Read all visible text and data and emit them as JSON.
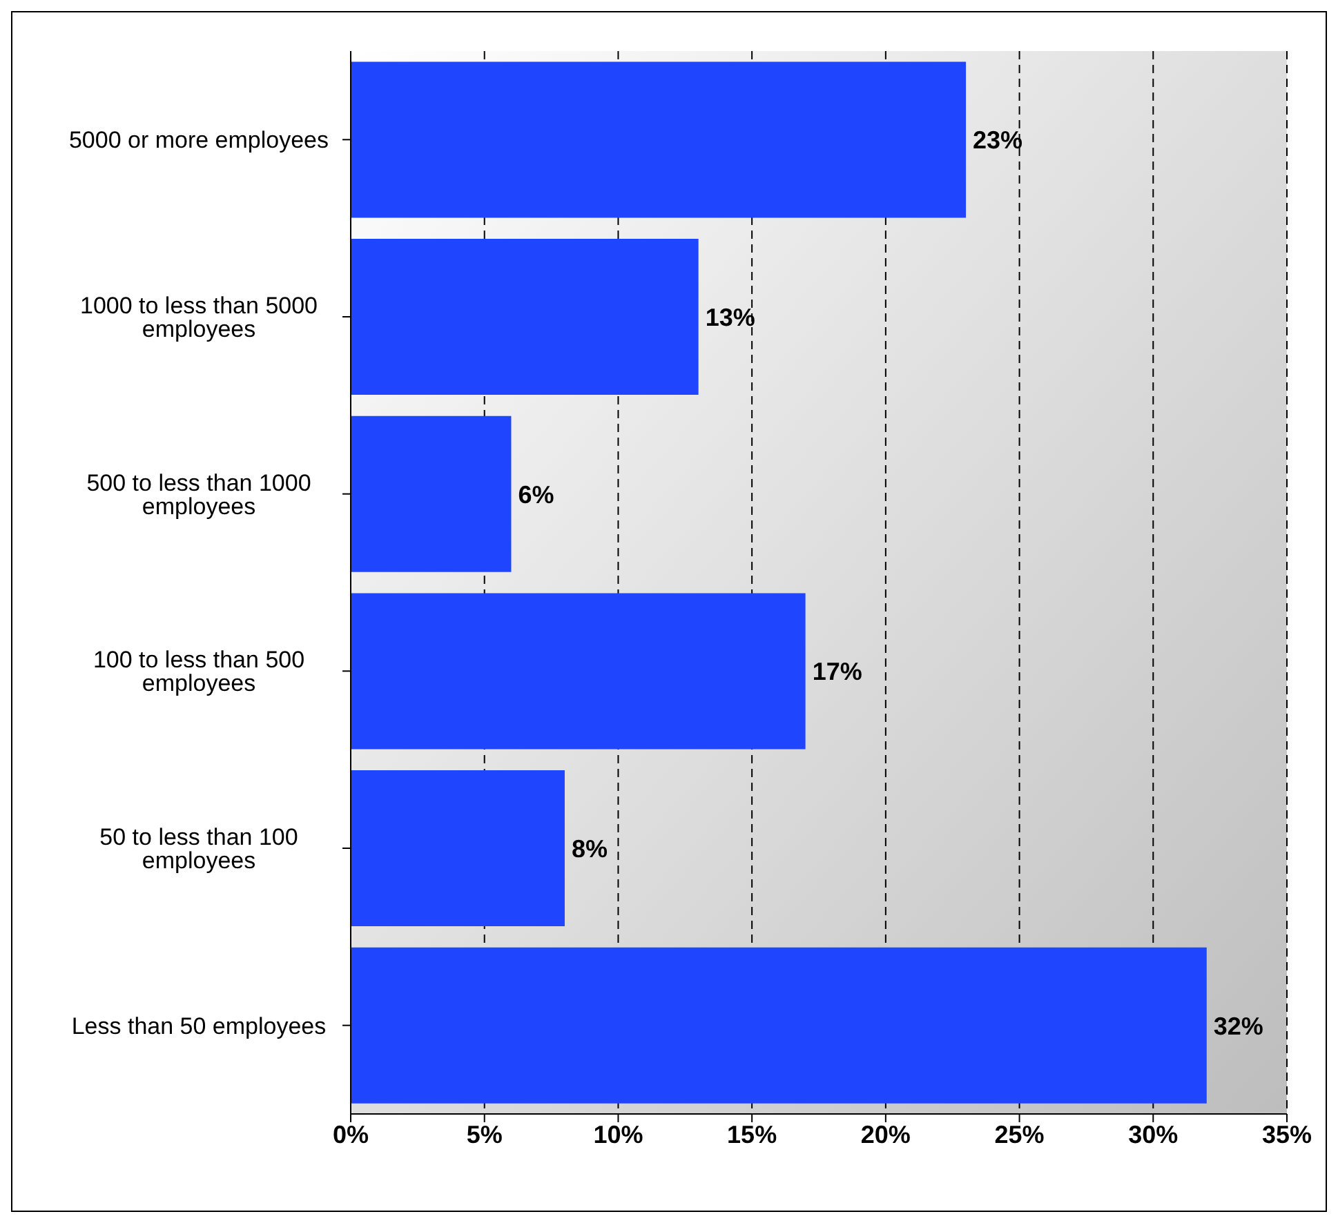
{
  "chart_data": {
    "type": "bar",
    "orientation": "horizontal",
    "categories": [
      "5000 or more employees",
      "1000 to less than 5000 employees",
      "500 to less than 1000 employees",
      "100 to less than 500 employees",
      "50 to less than 100 employees",
      "Less than 50 employees"
    ],
    "values": [
      23,
      13,
      6,
      17,
      8,
      32
    ],
    "value_labels": [
      "23%",
      "13%",
      "6%",
      "17%",
      "8%",
      "32%"
    ],
    "color": "#1f45ff",
    "xlim": [
      0,
      35
    ],
    "xticks": [
      {
        "value": 0,
        "label": "0%"
      },
      {
        "value": 5,
        "label": "5%"
      },
      {
        "value": 10,
        "label": "10%"
      },
      {
        "value": 15,
        "label": "15%"
      },
      {
        "value": 20,
        "label": "20%"
      },
      {
        "value": 25,
        "label": "25%"
      },
      {
        "value": 30,
        "label": "30%"
      },
      {
        "value": 35,
        "label": "35%"
      }
    ],
    "grid": "x",
    "legend": false
  }
}
